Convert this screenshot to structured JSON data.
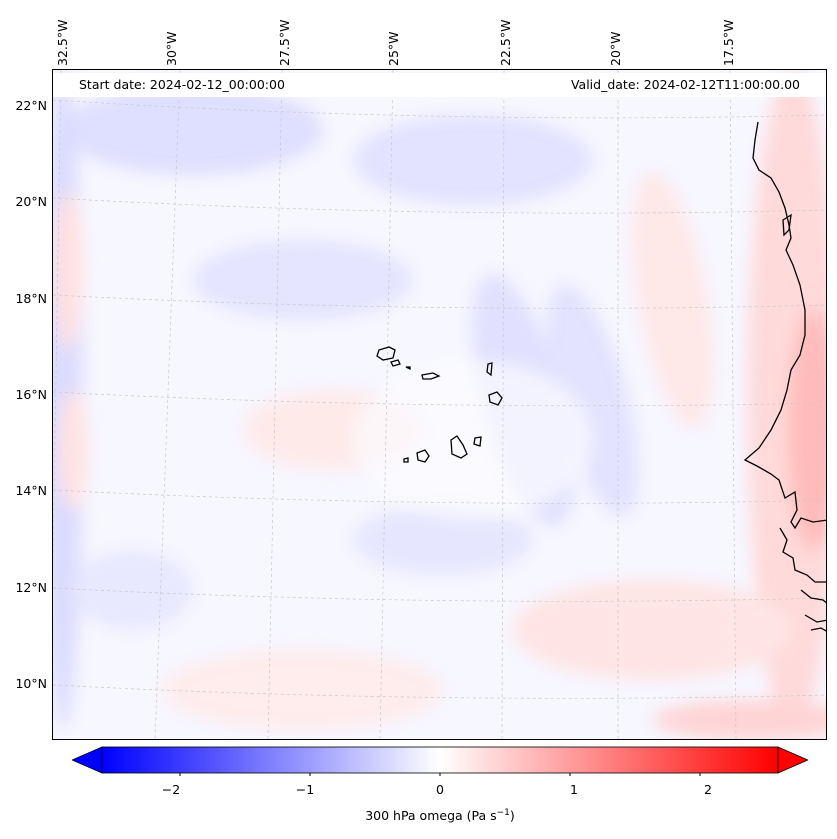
{
  "header": {
    "start_date": "Start date: 2024-02-12_00:00:00",
    "valid_date": "Valid_date: 2024-02-12T11:00:00.00"
  },
  "axes": {
    "lon_labels": [
      "32.5°W",
      "30°W",
      "27.5°W",
      "25°W",
      "22.5°W",
      "20°W",
      "17.5°W"
    ],
    "lat_labels": [
      "22°N",
      "20°N",
      "18°N",
      "16°N",
      "14°N",
      "12°N",
      "10°N"
    ]
  },
  "colorbar": {
    "tick_labels": [
      "−2",
      "−1",
      "0",
      "1",
      "2"
    ],
    "label_text": "300 hPa omega (Pa s",
    "label_exp": "−1",
    "label_close": ")",
    "range": [
      -2.6,
      2.6
    ],
    "extend": "both",
    "colormap": "bwr",
    "low_color": "#0000ff",
    "mid_color": "#ffffff",
    "high_color": "#ff0000"
  },
  "map": {
    "projection": "lambert-conformal",
    "extent": {
      "lon_min": -32.6,
      "lon_max": -15.3,
      "lat_min": 8.9,
      "lat_max": 22.6
    },
    "gridlines": "dashed-gray",
    "coastline_color": "#000000"
  }
}
